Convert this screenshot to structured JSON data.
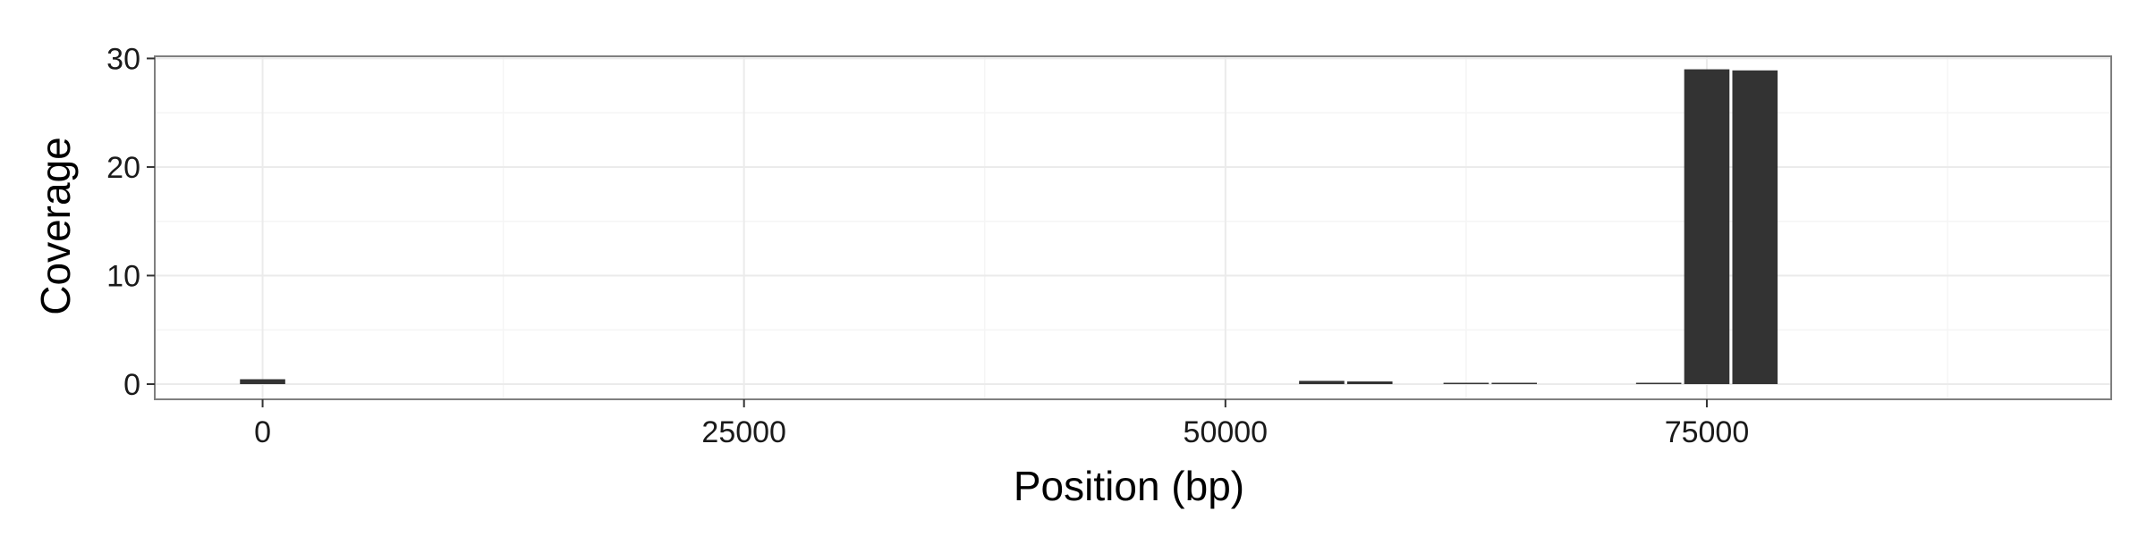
{
  "chart_data": {
    "type": "bar",
    "title": "",
    "xlabel": "Position (bp)",
    "ylabel": "Coverage",
    "xlim": [
      -5600,
      96000
    ],
    "ylim": [
      -1.4,
      30.2
    ],
    "x_ticks": [
      0,
      25000,
      50000,
      75000
    ],
    "x_tick_labels": [
      "0",
      "25000",
      "50000",
      "75000"
    ],
    "x_minor_ticks": [
      12500,
      37500,
      62500,
      87500
    ],
    "y_ticks": [
      0,
      10,
      20,
      30
    ],
    "y_tick_labels": [
      "0",
      "10",
      "20",
      "30"
    ],
    "y_minor_ticks": [
      5,
      15,
      25
    ],
    "bin_width": 2500,
    "bar_gap": 150,
    "grid": true,
    "legend": "none",
    "colors": {
      "bar": "#333333",
      "grid_major": "#ebebeb",
      "grid_minor": "#f5f5f5",
      "panel_border": "#7f7f7f"
    },
    "series": [
      {
        "name": "Coverage",
        "x": [
          0,
          55000,
          57500,
          62500,
          65000,
          72500,
          75000,
          77500
        ],
        "values": [
          0.45,
          0.3,
          0.25,
          0.1,
          0.1,
          0.1,
          29.0,
          28.9
        ]
      }
    ]
  }
}
